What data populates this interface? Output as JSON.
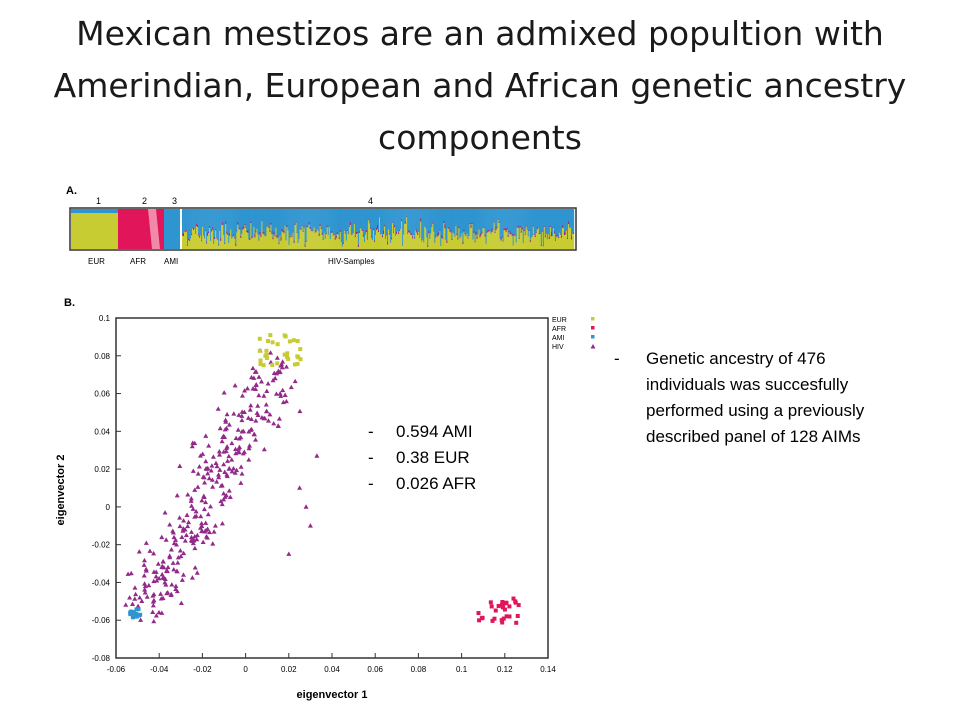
{
  "title": "Mexican mestizos are an admixed popultion with Amerindian, European and African genetic ancestry components",
  "colors": {
    "EUR": "#c8cc33",
    "AFR": "#e0155a",
    "AMI": "#2f95d0",
    "HIV": "#922a8a"
  },
  "chart_data": [
    {
      "type": "bar",
      "panel_label": "A.",
      "cluster_numbers": [
        "1",
        "2",
        "3",
        "4"
      ],
      "group_labels": [
        "EUR",
        "AFR",
        "AMI",
        "HIV-Samples"
      ],
      "components": [
        "EUR",
        "AFR",
        "AMI"
      ],
      "note": "stacked ancestry proportions per individual"
    },
    {
      "type": "scatter",
      "panel_label": "B.",
      "xlabel": "eigenvector 1",
      "ylabel": "eigenvector 2",
      "xlim": [
        -0.06,
        0.14
      ],
      "ylim": [
        -0.08,
        0.1
      ],
      "xticks": [
        "-0.06",
        "-0.04",
        "-0.02",
        "0",
        "0.02",
        "0.04",
        "0.06",
        "0.08",
        "0.1",
        "0.12",
        "0.14"
      ],
      "yticks": [
        "-0.08",
        "-0.06",
        "-0.04",
        "-0.02",
        "0",
        "0.02",
        "0.04",
        "0.06",
        "0.08",
        "0.1"
      ],
      "legend": [
        "EUR",
        "AFR",
        "AMI",
        "HIV"
      ],
      "legend_position": "right",
      "series": [
        {
          "name": "EUR",
          "marker": "square",
          "center": [
            0.016,
            0.083
          ],
          "spread": [
            0.012,
            0.01
          ]
        },
        {
          "name": "AFR",
          "marker": "square",
          "center": [
            0.117,
            -0.055
          ],
          "spread": [
            0.012,
            0.009
          ]
        },
        {
          "name": "AMI",
          "marker": "square",
          "center": [
            -0.051,
            -0.057
          ],
          "spread": [
            0.003,
            0.004
          ]
        },
        {
          "name": "HIV",
          "marker": "triangle",
          "trend_from": [
            -0.05,
            -0.06
          ],
          "trend_to": [
            0.015,
            0.075
          ]
        }
      ]
    }
  ],
  "ancestry_proportions": [
    "0.594 AMI",
    "0.38 EUR",
    "0.026 AFR"
  ],
  "description": "Genetic ancestry of 476 individuals was succesfully  performed using a previously described panel of 128 AIMs"
}
